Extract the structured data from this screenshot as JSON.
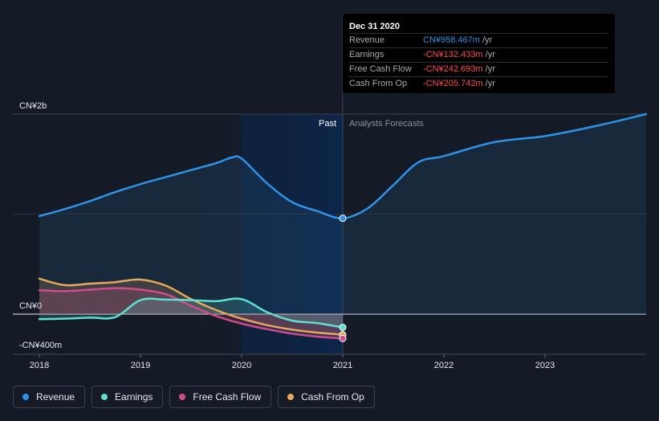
{
  "chart_data": {
    "type": "area",
    "x_ticks": [
      "2018",
      "2019",
      "2020",
      "2021",
      "2022",
      "2023"
    ],
    "y_ticks": [
      {
        "value": 2000,
        "label": "CN¥2b"
      },
      {
        "value": 0,
        "label": "CN¥0"
      },
      {
        "value": -400,
        "label": "-CN¥400m"
      }
    ],
    "xlim": [
      2017.75,
      2024.0
    ],
    "ylim": [
      -400,
      2000
    ],
    "unit": "CN¥m",
    "past_label": "Past",
    "forecast_label": "Analysts Forecasts",
    "divider_x": 2021.0,
    "series": [
      {
        "name": "Revenue",
        "color": "#2e93e8",
        "x": [
          2018.0,
          2018.25,
          2018.5,
          2018.75,
          2019.0,
          2019.25,
          2019.5,
          2019.75,
          2019.9,
          2020.0,
          2020.25,
          2020.5,
          2020.75,
          2021.0,
          2021.25,
          2021.5,
          2021.75,
          2022.0,
          2022.5,
          2023.0,
          2023.5,
          2024.0
        ],
        "values": [
          980,
          1050,
          1130,
          1220,
          1300,
          1370,
          1440,
          1510,
          1565,
          1555,
          1310,
          1120,
          1030,
          958.467,
          1060,
          1290,
          1520,
          1580,
          1720,
          1780,
          1880,
          2000
        ]
      },
      {
        "name": "Earnings",
        "color": "#5ee0d0",
        "x": [
          2018.0,
          2018.25,
          2018.5,
          2018.75,
          2019.0,
          2019.25,
          2019.5,
          2019.75,
          2020.0,
          2020.25,
          2020.5,
          2020.75,
          2021.0
        ],
        "values": [
          -50,
          -45,
          -35,
          -30,
          140,
          145,
          140,
          130,
          150,
          20,
          -65,
          -90,
          -132.433
        ]
      },
      {
        "name": "Free Cash Flow",
        "color": "#d04c8c",
        "x": [
          2018.0,
          2018.25,
          2018.5,
          2018.75,
          2019.0,
          2019.25,
          2019.5,
          2019.75,
          2020.0,
          2020.25,
          2020.5,
          2020.75,
          2021.0
        ],
        "values": [
          240,
          230,
          245,
          260,
          245,
          200,
          85,
          -20,
          -95,
          -150,
          -195,
          -225,
          -242.693
        ]
      },
      {
        "name": "Cash From Op",
        "color": "#e8a85c",
        "x": [
          2018.0,
          2018.25,
          2018.5,
          2018.75,
          2019.0,
          2019.25,
          2019.5,
          2019.75,
          2020.0,
          2020.25,
          2020.5,
          2020.75,
          2021.0
        ],
        "values": [
          355,
          290,
          305,
          320,
          345,
          285,
          150,
          40,
          -45,
          -110,
          -155,
          -185,
          -205.742
        ]
      }
    ],
    "legend_position": "bottom-left"
  },
  "tooltip": {
    "date": "Dec 31 2020",
    "rows": [
      {
        "name": "Revenue",
        "value": "CN¥958.467m",
        "unit": " /yr",
        "color": "#2e93e8"
      },
      {
        "name": "Earnings",
        "value": "-CN¥132.433m",
        "unit": " /yr",
        "color": "#ff4a4a"
      },
      {
        "name": "Free Cash Flow",
        "value": "-CN¥242.693m",
        "unit": " /yr",
        "color": "#ff4a4a"
      },
      {
        "name": "Cash From Op",
        "value": "-CN¥205.742m",
        "unit": " /yr",
        "color": "#ff4a4a"
      }
    ]
  },
  "legend": [
    {
      "label": "Revenue",
      "color": "#2e93e8"
    },
    {
      "label": "Earnings",
      "color": "#5ee0d0"
    },
    {
      "label": "Free Cash Flow",
      "color": "#d04c8c"
    },
    {
      "label": "Cash From Op",
      "color": "#e8a85c"
    }
  ]
}
